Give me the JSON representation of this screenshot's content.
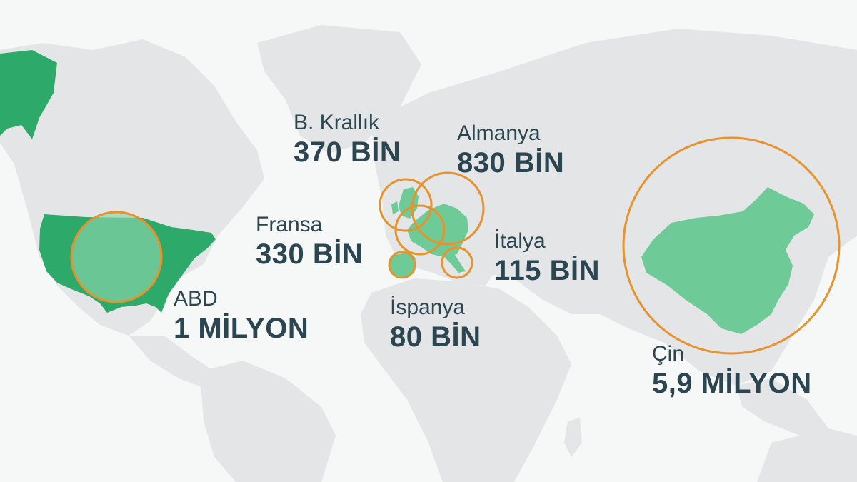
{
  "colors": {
    "background": "#f6f7f7",
    "land": "#e3e5e6",
    "highlight_dark": "#2daa6a",
    "highlight_light": "#6ecb97",
    "circle_stroke": "#e8922c",
    "text": "#2b4650"
  },
  "countries": [
    {
      "id": "usa",
      "name": "ABD",
      "value": "1 MİLYON",
      "amount": 1000000
    },
    {
      "id": "uk",
      "name": "B. Krallık",
      "value": "370 BİN",
      "amount": 370000
    },
    {
      "id": "germany",
      "name": "Almanya",
      "value": "830 BİN",
      "amount": 830000
    },
    {
      "id": "france",
      "name": "Fransa",
      "value": "330 BİN",
      "amount": 330000
    },
    {
      "id": "italy",
      "name": "İtalya",
      "value": "115 BİN",
      "amount": 115000
    },
    {
      "id": "spain",
      "name": "İspanya",
      "value": "80 BİN",
      "amount": 80000
    },
    {
      "id": "china",
      "name": "Çin",
      "value": "5,9 MİLYON",
      "amount": 5900000
    }
  ]
}
